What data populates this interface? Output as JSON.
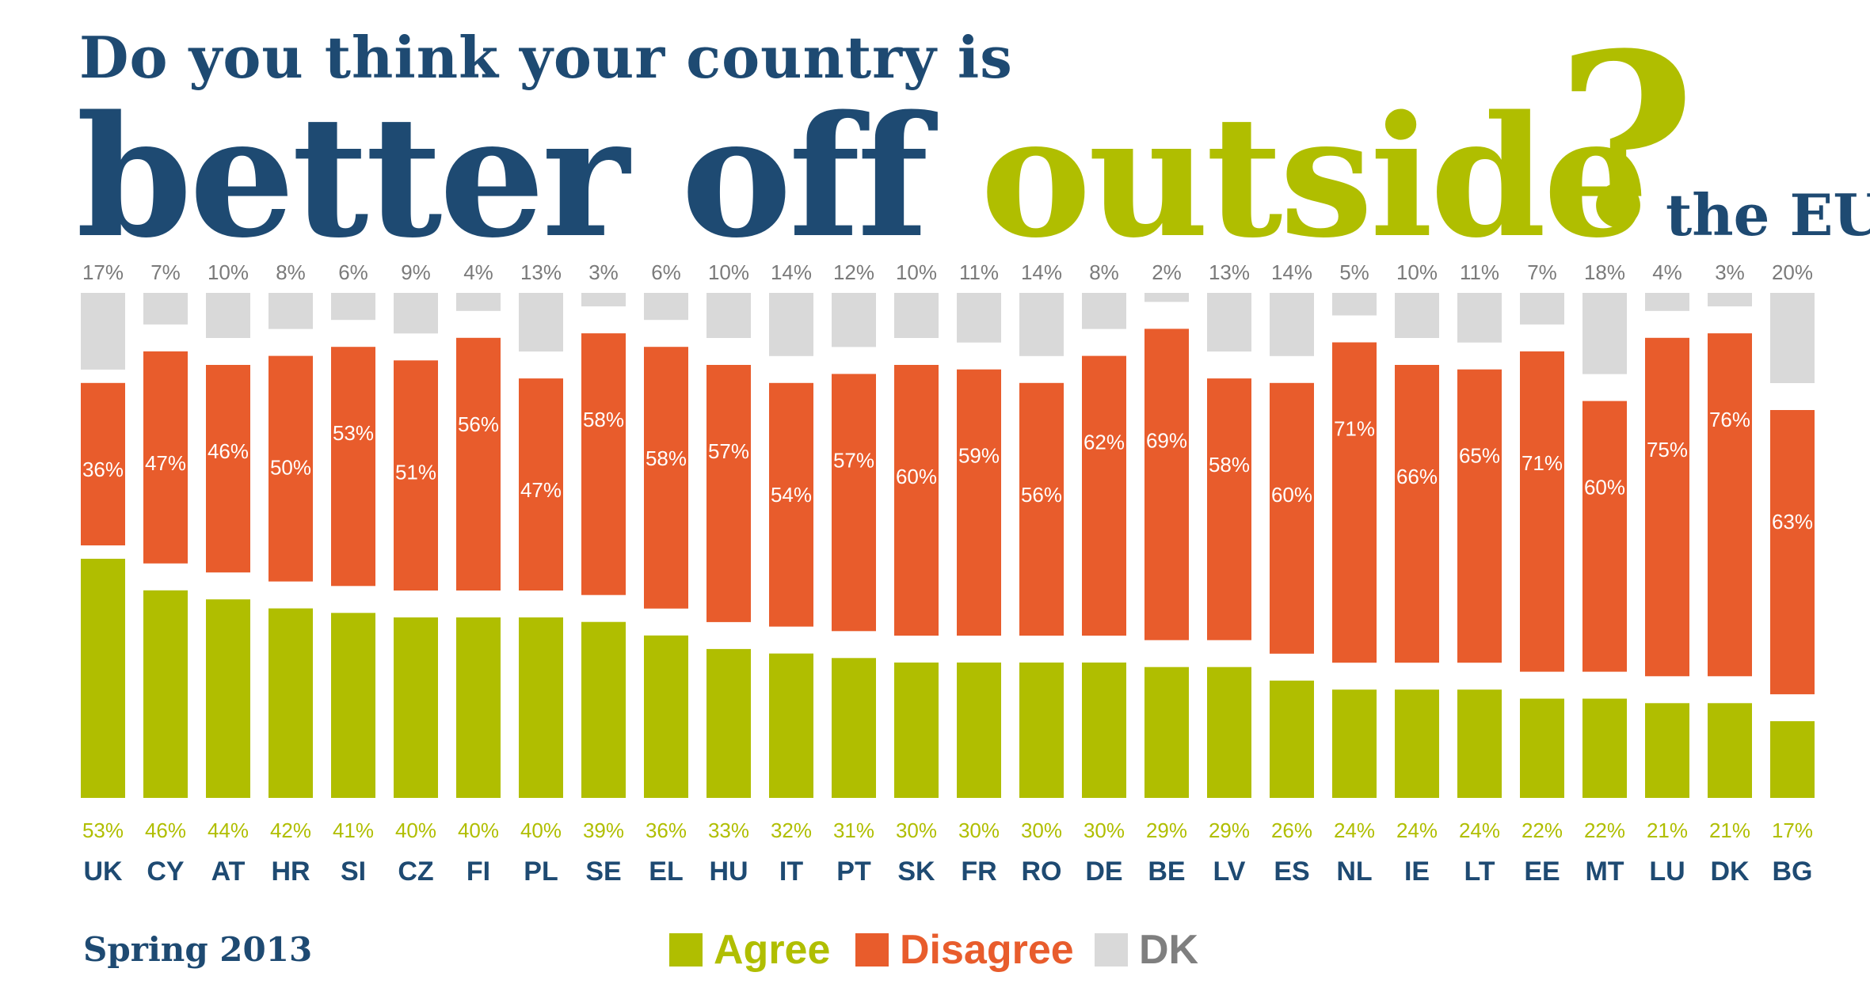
{
  "title": {
    "line1": "Do you think your country is",
    "big": "better off",
    "accent": "outside",
    "small": "the EU",
    "question": "?"
  },
  "footer": "Spring 2013",
  "colors": {
    "agree": "#b0be00",
    "disagree": "#e85c2c",
    "dk": "#d9d9d9",
    "navy": "#1e4a72"
  },
  "chart_data": {
    "type": "bar",
    "stacked": true,
    "categories": [
      "UK",
      "CY",
      "AT",
      "HR",
      "SI",
      "CZ",
      "FI",
      "PL",
      "SE",
      "EL",
      "HU",
      "IT",
      "PT",
      "SK",
      "FR",
      "RO",
      "DE",
      "BE",
      "LV",
      "ES",
      "NL",
      "IE",
      "LT",
      "EE",
      "MT",
      "LU",
      "DK",
      "BG"
    ],
    "series": [
      {
        "name": "Agree",
        "values": [
          53,
          46,
          44,
          42,
          41,
          40,
          40,
          40,
          39,
          36,
          33,
          32,
          31,
          30,
          30,
          30,
          30,
          29,
          29,
          26,
          24,
          24,
          24,
          22,
          22,
          21,
          21,
          17
        ]
      },
      {
        "name": "Disagree",
        "values": [
          36,
          47,
          46,
          50,
          53,
          51,
          56,
          47,
          58,
          58,
          57,
          54,
          57,
          60,
          59,
          56,
          62,
          69,
          58,
          60,
          71,
          66,
          65,
          71,
          60,
          75,
          76,
          63
        ]
      },
      {
        "name": "DK",
        "values": [
          17,
          7,
          10,
          8,
          6,
          9,
          4,
          13,
          3,
          6,
          10,
          14,
          12,
          10,
          11,
          14,
          8,
          2,
          13,
          14,
          5,
          10,
          11,
          7,
          18,
          4,
          3,
          20
        ]
      }
    ],
    "legend": [
      "Agree",
      "Disagree",
      "DK"
    ],
    "legend_position": "bottom"
  }
}
